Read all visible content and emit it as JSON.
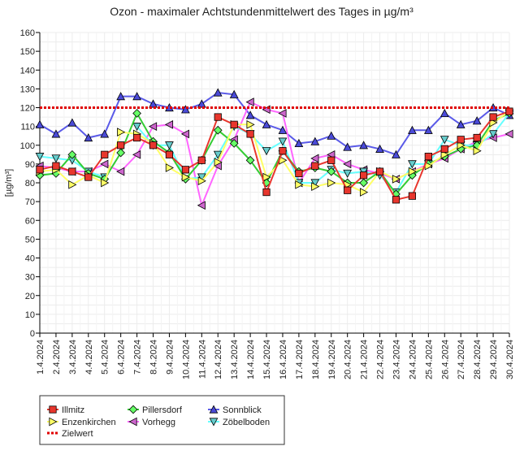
{
  "chart_data": {
    "type": "line",
    "title": "Ozon -  maximaler Achtstundenmittelwert des Tages in µg/m³",
    "ylabel": "[µg/m³]",
    "xlabel": "",
    "ylim": [
      0,
      160
    ],
    "yticks": [
      0,
      10,
      20,
      30,
      40,
      50,
      60,
      70,
      80,
      90,
      100,
      110,
      120,
      130,
      140,
      150,
      160
    ],
    "grid": true,
    "legend_position": "bottom-left",
    "categories": [
      "1.4.2024",
      "2.4.2024",
      "3.4.2024",
      "4.4.2024",
      "5.4.2024",
      "6.4.2024",
      "7.4.2024",
      "8.4.2024",
      "9.4.2024",
      "10.4.2024",
      "11.4.2024",
      "12.4.2024",
      "13.4.2024",
      "14.4.2024",
      "15.4.2024",
      "16.4.2024",
      "17.4.2024",
      "18.4.2024",
      "19.4.2024",
      "20.4.2024",
      "21.4.2024",
      "22.4.2024",
      "23.4.2024",
      "24.4.2024",
      "25.4.2024",
      "26.4.2024",
      "27.4.2024",
      "28.4.2024",
      "29.4.2024",
      "30.4.2024"
    ],
    "series": [
      {
        "name": "Illmitz",
        "color": "#e8362d",
        "fill": "#e8362d",
        "marker": "square",
        "values": [
          87,
          89,
          86,
          83,
          95,
          100,
          104,
          100,
          95,
          87,
          92,
          115,
          111,
          106,
          75,
          97,
          85,
          89,
          92,
          76,
          84,
          86,
          71,
          73,
          94,
          98,
          103,
          104,
          115,
          118
        ]
      },
      {
        "name": "Enzenkirchen",
        "color": "#ffff66",
        "fill": "#ffff66",
        "marker": "triangle-right",
        "values": [
          86,
          87,
          79,
          84,
          80,
          107,
          106,
          101,
          88,
          83,
          81,
          91,
          111,
          111,
          83,
          92,
          79,
          78,
          80,
          79,
          75,
          86,
          82,
          86,
          89,
          95,
          100,
          97,
          112,
          118
        ]
      },
      {
        "name": "Zielwert",
        "color": "#e00000",
        "marker": "none",
        "dashed": true,
        "values": [
          120,
          120,
          120,
          120,
          120,
          120,
          120,
          120,
          120,
          120,
          120,
          120,
          120,
          120,
          120,
          120,
          120,
          120,
          120,
          120,
          120,
          120,
          120,
          120,
          120,
          120,
          120,
          120,
          120,
          120
        ]
      },
      {
        "name": "Pillersdorf",
        "color": "#33cc33",
        "fill": "#66ff66",
        "marker": "diamond",
        "values": [
          84,
          85,
          95,
          85,
          82,
          96,
          117,
          102,
          96,
          82,
          92,
          108,
          101,
          92,
          80,
          97,
          86,
          88,
          86,
          80,
          80,
          86,
          74,
          84,
          90,
          94,
          98,
          100,
          113,
          117
        ]
      },
      {
        "name": "Vorhegg",
        "color": "#ff66ff",
        "fill": "#cc66cc",
        "marker": "triangle-left",
        "values": [
          89,
          88,
          86,
          86,
          90,
          86,
          95,
          110,
          111,
          106,
          68,
          89,
          103,
          123,
          119,
          117,
          80,
          93,
          95,
          90,
          87,
          85,
          82,
          86,
          90,
          93,
          98,
          102,
          104,
          106
        ]
      },
      {
        "name": "Sonnblick",
        "color": "#5a5ae8",
        "fill": "#4a4ad8",
        "marker": "triangle-up",
        "values": [
          111,
          106,
          112,
          104,
          106,
          126,
          126,
          122,
          120,
          119,
          122,
          128,
          127,
          116,
          111,
          108,
          101,
          102,
          105,
          99,
          100,
          98,
          95,
          108,
          108,
          117,
          111,
          113,
          120,
          116
        ]
      },
      {
        "name": "Zöbelboden",
        "color": "#66ffff",
        "fill": "#66cccc",
        "marker": "triangle-down",
        "values": [
          94,
          93,
          92,
          86,
          83,
          null,
          110,
          100,
          100,
          82,
          83,
          95,
          110,
          106,
          97,
          102,
          80,
          80,
          87,
          85,
          86,
          84,
          75,
          90,
          90,
          103,
          100,
          100,
          106,
          117
        ]
      }
    ]
  }
}
